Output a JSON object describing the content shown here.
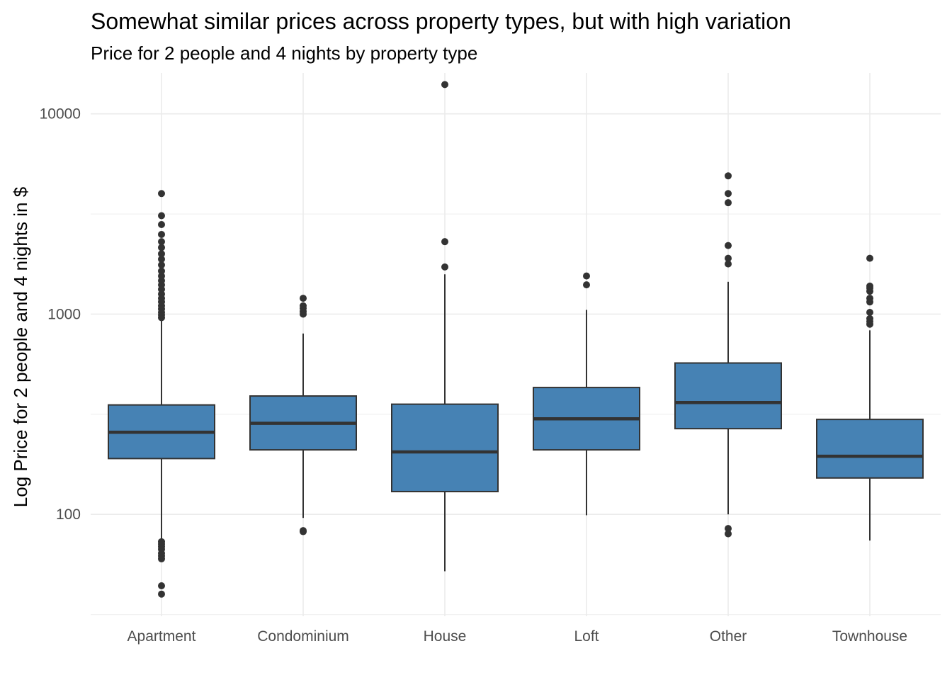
{
  "chart_data": {
    "type": "boxplot",
    "title": "Somewhat similar prices across property types, but with high variation",
    "subtitle": "Price for 2 people and 4 nights by property type",
    "xlabel": "",
    "ylabel": "Log Price for 2 people and 4 nights in $",
    "y_scale": "log10",
    "ylim": [
      31,
      16000
    ],
    "y_ticks": [
      100,
      1000,
      10000
    ],
    "y_tick_labels": [
      "100",
      "1000",
      "10000"
    ],
    "y_minor_ticks": [
      31.6,
      316,
      3162
    ],
    "grid": true,
    "fill_color": "#4682b4",
    "line_color": "#333333",
    "categories": [
      "Apartment",
      "Condominium",
      "House",
      "Loft",
      "Other",
      "Townhouse"
    ],
    "boxes": [
      {
        "category": "Apartment",
        "whisker_low": 75,
        "q1": 190,
        "median": 257,
        "q3": 352,
        "whisker_high": 930,
        "outliers": [
          40,
          44,
          60,
          62,
          64,
          67,
          69,
          71,
          73,
          960,
          990,
          1020,
          1060,
          1100,
          1150,
          1200,
          1260,
          1330,
          1400,
          1470,
          1550,
          1640,
          1760,
          1880,
          2000,
          2150,
          2300,
          2500,
          2800,
          3100,
          4000
        ]
      },
      {
        "category": "Condominium",
        "whisker_low": 96,
        "q1": 210,
        "median": 285,
        "q3": 390,
        "whisker_high": 800,
        "outliers": [
          82,
          83,
          1000,
          1030,
          1070,
          1100,
          1200
        ]
      },
      {
        "category": "House",
        "whisker_low": 52,
        "q1": 130,
        "median": 205,
        "q3": 355,
        "whisker_high": 1580,
        "outliers": [
          1720,
          2300,
          14000
        ]
      },
      {
        "category": "Loft",
        "whisker_low": 99,
        "q1": 210,
        "median": 300,
        "q3": 430,
        "whisker_high": 1050,
        "outliers": [
          1400,
          1550
        ]
      },
      {
        "category": "Other",
        "whisker_low": 100,
        "q1": 268,
        "median": 362,
        "q3": 570,
        "whisker_high": 1450,
        "outliers": [
          80,
          85,
          1780,
          1900,
          2200,
          3600,
          4000,
          4900
        ]
      },
      {
        "category": "Townhouse",
        "whisker_low": 74,
        "q1": 152,
        "median": 195,
        "q3": 298,
        "whisker_high": 830,
        "outliers": [
          890,
          920,
          950,
          1020,
          1150,
          1200,
          1300,
          1350,
          1380,
          1900
        ]
      }
    ]
  }
}
